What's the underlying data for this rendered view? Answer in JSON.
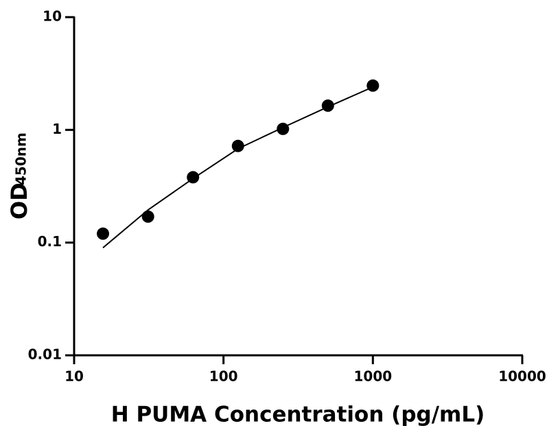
{
  "chart_data": {
    "type": "scatter",
    "x_label": "H PUMA Concentration (pg/mL)",
    "y_label": "OD",
    "y_label_sub": "450nm",
    "x": [
      15.6,
      31.25,
      62.5,
      125,
      250,
      500,
      1000
    ],
    "values": [
      0.12,
      0.17,
      0.38,
      0.72,
      1.02,
      1.64,
      2.47
    ],
    "color": "#000000",
    "fit": {
      "x": [
        15.6,
        31.25,
        62.5,
        125,
        250,
        500,
        1000
      ],
      "values": [
        0.09,
        0.195,
        0.37,
        0.68,
        1.05,
        1.6,
        2.4
      ]
    },
    "xlim": [
      10,
      10000
    ],
    "ylim": [
      0.01,
      10
    ],
    "xticks": [
      10,
      100,
      1000,
      10000
    ],
    "yticks": [
      0.01,
      0.1,
      1,
      10
    ],
    "log_x": true,
    "log_y": true,
    "grid": false
  }
}
